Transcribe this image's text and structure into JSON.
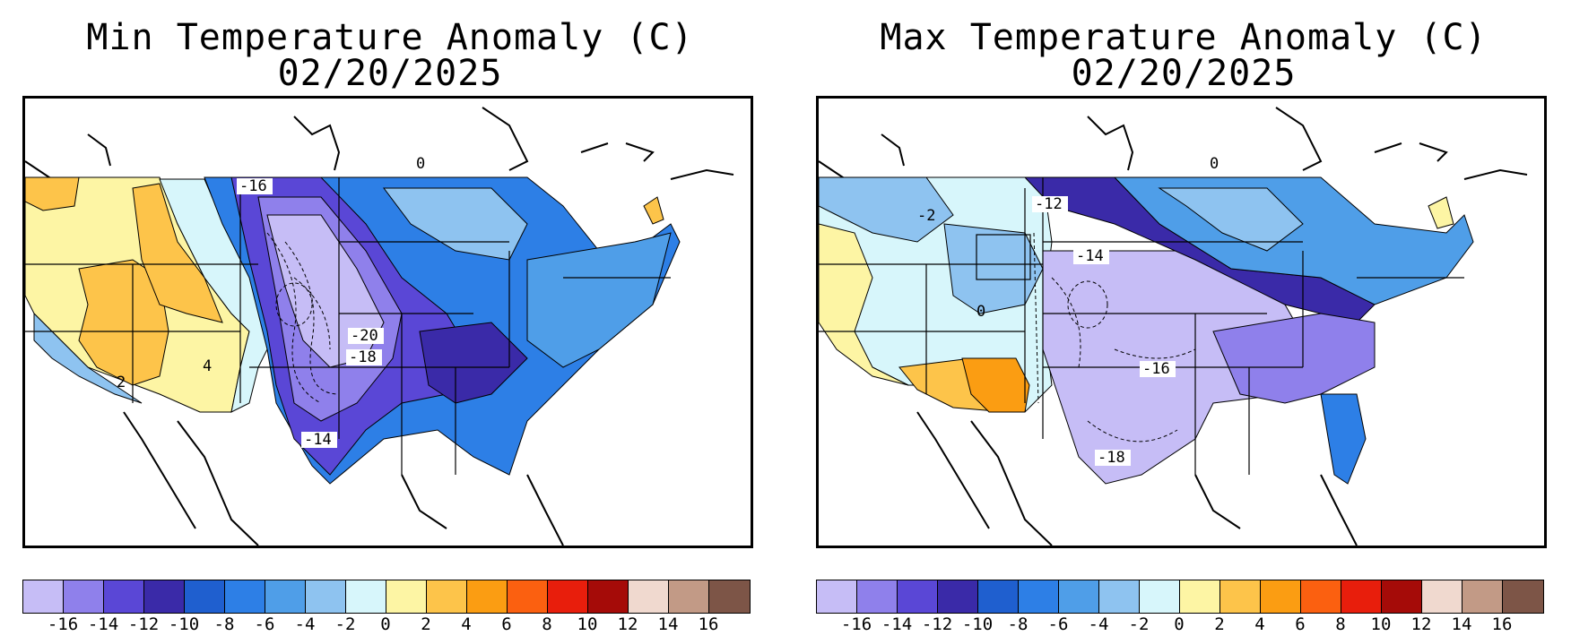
{
  "panels": [
    {
      "title": "Min Temperature Anomaly (C)",
      "date": "02/20/2025",
      "contour_labels": [
        "-16",
        "-20",
        "-18",
        "-14",
        "2",
        "4",
        "0"
      ]
    },
    {
      "title": "Max Temperature Anomaly (C)",
      "date": "02/20/2025",
      "contour_labels": [
        "-12",
        "-14",
        "-16",
        "-18",
        "0",
        "-2",
        "0"
      ]
    }
  ],
  "colorbar": {
    "colors": [
      "#c6bdf6",
      "#8f80eb",
      "#5a47d6",
      "#3a2aa8",
      "#1f5fcf",
      "#2d7fe6",
      "#4f9ee8",
      "#8ec3f0",
      "#d7f6fb",
      "#fdf5a4",
      "#fdc44a",
      "#fb9d12",
      "#fb6010",
      "#e81e0c",
      "#a50b08",
      "#f0d9cf",
      "#c29a86",
      "#7d5547"
    ],
    "ticks": [
      "-16",
      "-14",
      "-12",
      "-10",
      "-8",
      "-6",
      "-4",
      "-2",
      "0",
      "2",
      "4",
      "6",
      "8",
      "10",
      "12",
      "14",
      "16"
    ]
  }
}
